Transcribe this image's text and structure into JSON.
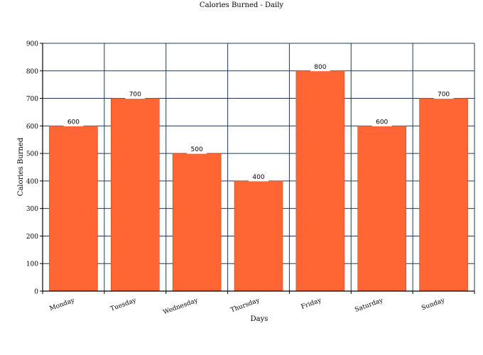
{
  "chart_data": {
    "type": "bar",
    "title": "Calories Burned - Daily",
    "xlabel": "Days",
    "ylabel": "Calories Burned",
    "categories": [
      "Monday",
      "Tuesday",
      "Wednesday",
      "Thursday",
      "Friday",
      "Saturday",
      "Sunday"
    ],
    "values": [
      600,
      700,
      500,
      400,
      800,
      600,
      700
    ],
    "ylim": [
      0,
      900
    ],
    "yticks": [
      0,
      100,
      200,
      300,
      400,
      500,
      600,
      700,
      800,
      900
    ],
    "grid": true,
    "bar_color": "#ff6633",
    "grid_color": "#1f3a5a"
  }
}
